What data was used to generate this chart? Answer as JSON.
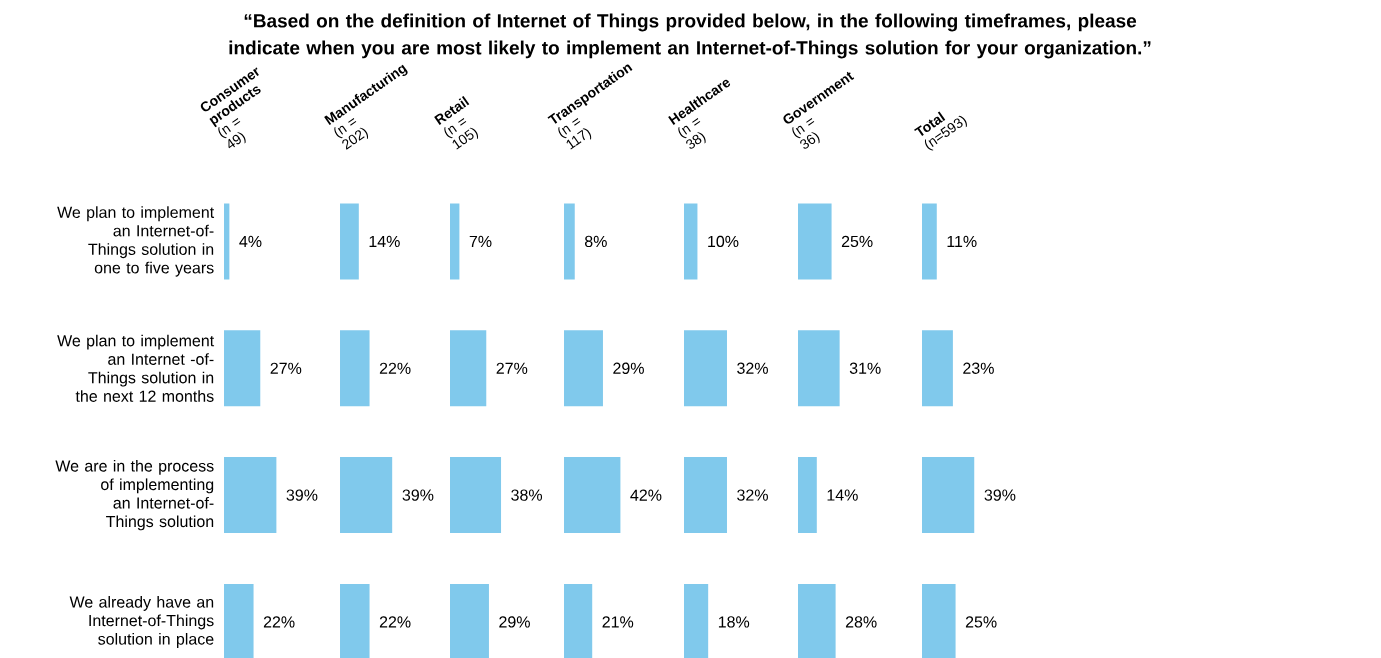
{
  "chart_data": [
    {
      "type": "bar",
      "orientation": "horizontal",
      "annotations": [
        "“Based on the definition of Internet of Things provided below, in the following timeframes, please indicate when you are most likely to implement an Internet-of-Things solution for your organization.”"
      ],
      "title": "**Consumer products** (n = 49)",
      "categories": [
        "We plan to implement an Internet-of-Things solution in one to five years",
        "We plan to implement an Internet -of-Things solution in the next 12 months",
        "We are in the process of implementing an Internet-of-Things solution",
        "We already have an Internet-of-Things solution in place"
      ],
      "values": [
        4,
        27,
        39,
        22
      ],
      "value_labels": [
        "4%",
        "27%",
        "39%",
        "22%"
      ],
      "color": "#80c9ec",
      "tick_labels": "y"
    },
    {
      "type": "bar",
      "orientation": "horizontal",
      "title": "**Manufacturing** (n = 202)",
      "categories": [
        null,
        null,
        null,
        null
      ],
      "values": [
        14,
        22,
        39,
        22
      ],
      "value_labels": [
        "14%",
        "22%",
        "39%",
        "22%"
      ],
      "color": "#80c9ec"
    },
    {
      "type": "bar",
      "orientation": "horizontal",
      "title": "**Retail** (n = 105)",
      "categories": [
        null,
        null,
        null,
        null
      ],
      "values": [
        7,
        27,
        38,
        29
      ],
      "value_labels": [
        "7%",
        "27%",
        "38%",
        "29%"
      ],
      "color": "#80c9ec"
    },
    {
      "type": "bar",
      "orientation": "horizontal",
      "title": "**Transportation** (n = 117)",
      "categories": [
        null,
        null,
        null,
        null
      ],
      "values": [
        8,
        29,
        42,
        21
      ],
      "value_labels": [
        "8%",
        "29%",
        "42%",
        "21%"
      ],
      "color": "#80c9ec"
    },
    {
      "type": "bar",
      "orientation": "horizontal",
      "title": "**Healthcare** (n = 38)",
      "categories": [
        null,
        null,
        null,
        null
      ],
      "values": [
        10,
        32,
        32,
        18
      ],
      "value_labels": [
        "10%",
        "32%",
        "32%",
        "18%"
      ],
      "color": "#80c9ec"
    },
    {
      "type": "bar",
      "orientation": "horizontal",
      "title": "**Government** (n = 36)",
      "categories": [
        null,
        null,
        null,
        null
      ],
      "values": [
        25,
        31,
        14,
        28
      ],
      "value_labels": [
        "25%",
        "31%",
        "14%",
        "28%"
      ],
      "color": "#80c9ec"
    },
    {
      "type": "bar",
      "orientation": "horizontal",
      "title": "**Total** (n=593)",
      "categories": [
        null,
        null,
        null,
        null
      ],
      "values": [
        11,
        23,
        39,
        25
      ],
      "value_labels": [
        "11%",
        "23%",
        "39%",
        "25%"
      ],
      "color": "#80c9ec"
    }
  ]
}
